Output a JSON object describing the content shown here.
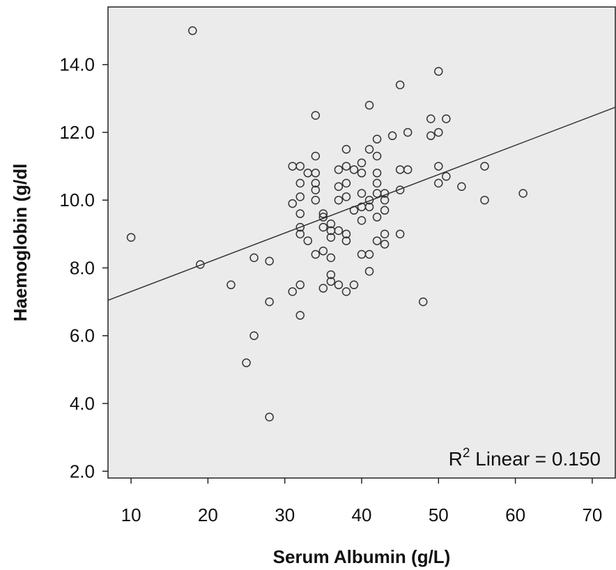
{
  "chart_data": {
    "type": "scatter",
    "title": "",
    "xlabel": "Serum Albumin (g/L)",
    "ylabel": "Haemoglobin (g/dl",
    "xlim": [
      7,
      73
    ],
    "ylim": [
      1.8,
      15.7
    ],
    "xticks": [
      10,
      20,
      30,
      40,
      50,
      60,
      70
    ],
    "xtick_labels": [
      "10",
      "20",
      "30",
      "40",
      "50",
      "60",
      "70"
    ],
    "yticks": [
      2,
      4,
      6,
      8,
      10,
      12,
      14
    ],
    "ytick_labels": [
      "2.0",
      "4.0",
      "6.0",
      "8.0",
      "10.0",
      "12.0",
      "14.0"
    ],
    "grid": false,
    "colors": {
      "plot_background": "#ebebeb",
      "marker_edge": "#333333",
      "line": "#333333"
    },
    "fit_line": {
      "slope": 0.0863,
      "intercept": 6.44
    },
    "annotation": {
      "prefix": "R",
      "superscript": "2",
      "text": " Linear = 0.150"
    },
    "points": [
      [
        10,
        8.9
      ],
      [
        18,
        15.0
      ],
      [
        19,
        8.1
      ],
      [
        23,
        7.5
      ],
      [
        25,
        5.2
      ],
      [
        26,
        6.0
      ],
      [
        26,
        8.3
      ],
      [
        28,
        8.2
      ],
      [
        28,
        7.0
      ],
      [
        28,
        3.6
      ],
      [
        31,
        11.0
      ],
      [
        31,
        9.9
      ],
      [
        31,
        7.3
      ],
      [
        32,
        11.0
      ],
      [
        32,
        10.5
      ],
      [
        32,
        10.1
      ],
      [
        32,
        9.6
      ],
      [
        32,
        9.2
      ],
      [
        32,
        9.0
      ],
      [
        32,
        7.5
      ],
      [
        32,
        6.6
      ],
      [
        33,
        10.8
      ],
      [
        33,
        8.8
      ],
      [
        34,
        12.5
      ],
      [
        34,
        11.3
      ],
      [
        34,
        10.8
      ],
      [
        34,
        10.5
      ],
      [
        34,
        10.3
      ],
      [
        34,
        10.0
      ],
      [
        34,
        8.4
      ],
      [
        35,
        9.6
      ],
      [
        35,
        9.5
      ],
      [
        35,
        9.2
      ],
      [
        35,
        8.5
      ],
      [
        35,
        7.4
      ],
      [
        36,
        9.3
      ],
      [
        36,
        9.1
      ],
      [
        36,
        8.9
      ],
      [
        36,
        8.3
      ],
      [
        36,
        7.8
      ],
      [
        36,
        7.6
      ],
      [
        37,
        10.9
      ],
      [
        37,
        10.4
      ],
      [
        37,
        10.0
      ],
      [
        37,
        9.1
      ],
      [
        37,
        7.5
      ],
      [
        38,
        11.5
      ],
      [
        38,
        11.0
      ],
      [
        38,
        10.5
      ],
      [
        38,
        10.1
      ],
      [
        38,
        9.0
      ],
      [
        38,
        8.8
      ],
      [
        38,
        7.3
      ],
      [
        39,
        10.9
      ],
      [
        39,
        9.7
      ],
      [
        39,
        7.5
      ],
      [
        40,
        11.1
      ],
      [
        40,
        10.8
      ],
      [
        40,
        10.2
      ],
      [
        40,
        9.8
      ],
      [
        40,
        9.4
      ],
      [
        40,
        8.4
      ],
      [
        41,
        12.8
      ],
      [
        41,
        11.5
      ],
      [
        41,
        10.0
      ],
      [
        41,
        9.8
      ],
      [
        41,
        8.4
      ],
      [
        41,
        7.9
      ],
      [
        42,
        11.8
      ],
      [
        42,
        11.3
      ],
      [
        42,
        10.8
      ],
      [
        42,
        10.5
      ],
      [
        42,
        10.2
      ],
      [
        42,
        9.5
      ],
      [
        42,
        8.8
      ],
      [
        43,
        10.2
      ],
      [
        43,
        10.0
      ],
      [
        43,
        9.7
      ],
      [
        43,
        9.0
      ],
      [
        43,
        8.7
      ],
      [
        44,
        11.9
      ],
      [
        45,
        13.4
      ],
      [
        45,
        10.9
      ],
      [
        45,
        10.3
      ],
      [
        45,
        9.0
      ],
      [
        46,
        12.0
      ],
      [
        46,
        10.9
      ],
      [
        48,
        7.0
      ],
      [
        49,
        12.4
      ],
      [
        49,
        11.9
      ],
      [
        50,
        13.8
      ],
      [
        50,
        12.0
      ],
      [
        50,
        11.0
      ],
      [
        50,
        10.5
      ],
      [
        51,
        12.4
      ],
      [
        51,
        10.7
      ],
      [
        53,
        10.4
      ],
      [
        56,
        11.0
      ],
      [
        56,
        10.0
      ],
      [
        61,
        10.2
      ]
    ]
  }
}
